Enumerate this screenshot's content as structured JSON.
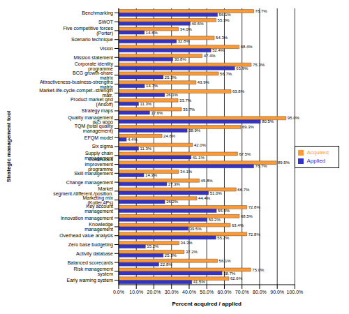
{
  "chart_data": {
    "type": "bar",
    "orientation": "horizontal",
    "grid": true,
    "legend": "right",
    "data_labels": true,
    "x_label": "Percent acquired / applied",
    "y_label": "Strategic management tool",
    "xlim": [
      0,
      100
    ],
    "xticks": [
      {
        "value": 0,
        "label": "0.0%"
      },
      {
        "value": 10,
        "label": "10.0%"
      },
      {
        "value": 20,
        "label": "20.0%"
      },
      {
        "value": 30,
        "label": "30.0%"
      },
      {
        "value": 40,
        "label": "40.0%"
      },
      {
        "value": 50,
        "label": "50.0%"
      },
      {
        "value": 60,
        "label": "60.0%"
      },
      {
        "value": 70,
        "label": "70.0%"
      },
      {
        "value": 80,
        "label": "80.0%"
      },
      {
        "value": 90,
        "label": "90.0%"
      },
      {
        "value": 100,
        "label": "100.0%"
      }
    ],
    "categories": [
      "Benchmarking",
      "SWOT",
      "Five competitive forces (Porter)",
      "Scenario technique",
      "Vision",
      "Mission statement",
      "Corporate identity programme",
      "BCG growth-share matrix",
      "Attractiveness-business-strengths matrix",
      "Market-life-cycle-compet.-strength matr.",
      "Product market grid (Ansoff)",
      "Strategy maps",
      "Quality management ISO 9000",
      "TQM (total quality management)",
      "EFQM model",
      "Six sigma",
      "Supply chain management",
      "Continuous improvement programme",
      "Skill management",
      "Change management",
      "Market segment./different./position.",
      "Marketing mix (Kotler,4Ps)",
      "Key account management",
      "Innovation management",
      "Knowledge management",
      "Overhead value analysis",
      "Zero base budgeting",
      "Activity database",
      "Balanced scorecards",
      "Risk management system",
      "Early warning system"
    ],
    "series": [
      {
        "name": "Acquired",
        "color": "#ff9933",
        "values": [
          76.7,
          55.3,
          34.0,
          54.3,
          68.4,
          47.4,
          75.3,
          56.7,
          43.9,
          63.8,
          33.7,
          35.7,
          95.0,
          69.3,
          24.6,
          42.0,
          67.5,
          89.5,
          34.1,
          45.8,
          66.7,
          44.4,
          72.8,
          68.5,
          63.4,
          72.8,
          34.3,
          37.2,
          56.1,
          75.0,
          62.6
        ],
        "value_labels": [
          "76.7%",
          "55.3%",
          "34.0%",
          "54.3%",
          "68.4%",
          "47.4%",
          "75.3%",
          "56.7%",
          "43.9%",
          "63.8%",
          "33.7%",
          "35.7%",
          "95.0%",
          "69.3%",
          "24.6%",
          "42.0%",
          "67.5%",
          "89.5%",
          "34.1%",
          "45.8%",
          "66.7%",
          "44.4%",
          "72.8%",
          "68.5%",
          "63.4%",
          "72.8%",
          "34.3%",
          "37.2%",
          "56.1%",
          "75.0%",
          "62.6%"
        ]
      },
      {
        "name": "Applied",
        "color": "#3333cc",
        "values": [
          56.1,
          40.6,
          14.6,
          32.8,
          52.4,
          30.8,
          65.9,
          25.3,
          14.7,
          26.1,
          11.3,
          17.6,
          80.5,
          38.9,
          4.4,
          11.3,
          41.1,
          76.7,
          14.3,
          27.3,
          51.0,
          26.2,
          55.5,
          50.2,
          39.5,
          55.2,
          15.2,
          25.3,
          22.8,
          58.7,
          41.5
        ],
        "value_labels": [
          "56.1%",
          "40.6%",
          "14.6%",
          "32.8%",
          "52.4%",
          "30.8%",
          "65.9%",
          "25.3%",
          "14.7%",
          "26.1%",
          "11.3%",
          "17.6%",
          "80.5%",
          "38.9%",
          "4.4%",
          "11.3%",
          "41.1%",
          "76.7%",
          "14.3%",
          "27.3%",
          "51.0%",
          "26.2%",
          "55.5%",
          "50.2%",
          "39.5%",
          "55.2%",
          "15.2%",
          "25.3%",
          "22.8%",
          "58.7%",
          "41.5%"
        ]
      }
    ]
  }
}
